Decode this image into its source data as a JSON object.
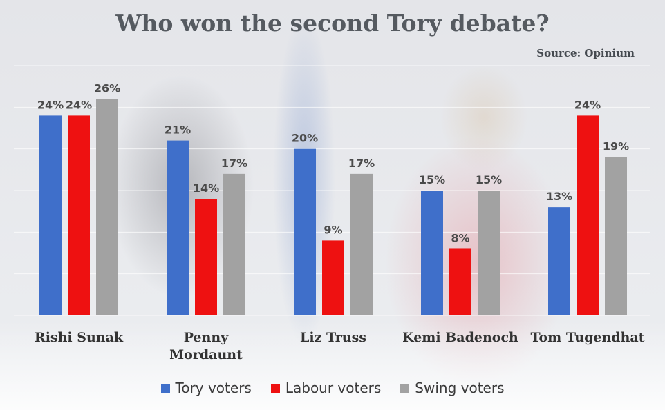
{
  "chart_data": {
    "type": "bar",
    "title": "Who won the second Tory debate?",
    "source": "Source: Opinium",
    "categories": [
      [
        "Rishi Sunak"
      ],
      [
        "Penny",
        "Mordaunt"
      ],
      [
        "Liz Truss"
      ],
      [
        "Kemi Badenoch"
      ],
      [
        "Tom Tugendhat"
      ]
    ],
    "series": [
      {
        "name": "Tory voters",
        "color": "#3f6fca",
        "values": [
          24,
          21,
          20,
          15,
          13
        ]
      },
      {
        "name": "Labour voters",
        "color": "#ee1111",
        "values": [
          24,
          14,
          9,
          8,
          24
        ]
      },
      {
        "name": "Swing voters",
        "color": "#a2a2a2",
        "values": [
          26,
          17,
          17,
          15,
          19
        ]
      }
    ],
    "value_suffix": "%",
    "ylim": [
      0,
      30
    ],
    "grid": true,
    "legend": "bottom"
  }
}
